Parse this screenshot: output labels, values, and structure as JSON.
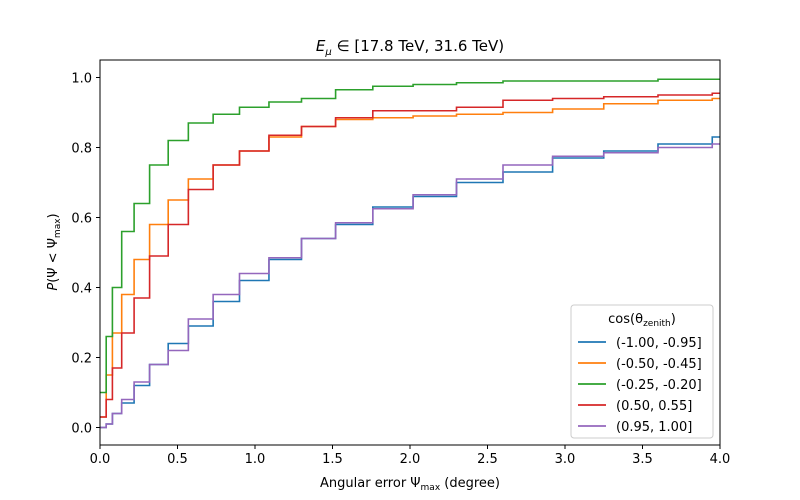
{
  "chart_data": {
    "type": "line",
    "step": true,
    "title": "E_μ ∈ [17.8 TeV, 31.6 TeV)",
    "title_parts": {
      "sym": "E",
      "sub": "μ",
      "rest": " ∈ [17.8 TeV, 31.6 TeV)"
    },
    "xlabel": "Angular error Ψ_max (degree)",
    "xlabel_parts": {
      "pre": "Angular error Ψ",
      "sub": "max",
      "post": " (degree)"
    },
    "ylabel": "P(Ψ < Ψ_max)",
    "ylabel_parts": {
      "pre": "P(Ψ < Ψ",
      "sub": "max",
      "post": ")"
    },
    "xlim": [
      0,
      4
    ],
    "ylim": [
      -0.05,
      1.05
    ],
    "xticks": [
      "0.0",
      "0.5",
      "1.0",
      "1.5",
      "2.0",
      "2.5",
      "3.0",
      "3.5",
      "4.0"
    ],
    "yticks": [
      "0.0",
      "0.2",
      "0.4",
      "0.6",
      "0.8",
      "1.0"
    ],
    "legend": {
      "title": "cos(θ_zenith)",
      "title_parts": {
        "pre": "cos(θ",
        "sub": "zenith",
        "post": ")"
      },
      "placement": "bottom-right"
    },
    "x": [
      0,
      0.04,
      0.08,
      0.14,
      0.22,
      0.32,
      0.44,
      0.57,
      0.73,
      0.9,
      1.09,
      1.3,
      1.52,
      1.76,
      2.02,
      2.3,
      2.6,
      2.92,
      3.25,
      3.6,
      3.95
    ],
    "series": [
      {
        "name": "(-1.00, -0.95]",
        "color": "#1f77b4",
        "values": [
          0.0,
          0.01,
          0.04,
          0.07,
          0.12,
          0.18,
          0.24,
          0.29,
          0.36,
          0.42,
          0.48,
          0.54,
          0.58,
          0.63,
          0.66,
          0.7,
          0.73,
          0.77,
          0.79,
          0.81,
          0.83
        ]
      },
      {
        "name": "(-0.50, -0.45]",
        "color": "#ff7f0e",
        "values": [
          0.03,
          0.15,
          0.27,
          0.38,
          0.48,
          0.58,
          0.65,
          0.71,
          0.75,
          0.79,
          0.83,
          0.86,
          0.88,
          0.885,
          0.89,
          0.895,
          0.9,
          0.91,
          0.925,
          0.935,
          0.94
        ]
      },
      {
        "name": "(-0.25, -0.20]",
        "color": "#2ca02c",
        "values": [
          0.1,
          0.26,
          0.4,
          0.56,
          0.64,
          0.75,
          0.82,
          0.87,
          0.895,
          0.915,
          0.93,
          0.94,
          0.965,
          0.975,
          0.98,
          0.985,
          0.99,
          0.99,
          0.99,
          0.995,
          0.995
        ]
      },
      {
        "name": "(0.50, 0.55]",
        "color": "#d62728",
        "values": [
          0.03,
          0.08,
          0.17,
          0.27,
          0.37,
          0.49,
          0.58,
          0.68,
          0.75,
          0.79,
          0.835,
          0.86,
          0.885,
          0.905,
          0.905,
          0.915,
          0.935,
          0.94,
          0.945,
          0.95,
          0.955
        ]
      },
      {
        "name": "(0.95, 1.00]",
        "color": "#9467bd",
        "values": [
          0.0,
          0.01,
          0.04,
          0.08,
          0.13,
          0.18,
          0.22,
          0.31,
          0.38,
          0.44,
          0.485,
          0.54,
          0.585,
          0.625,
          0.665,
          0.71,
          0.75,
          0.775,
          0.785,
          0.8,
          0.81
        ]
      }
    ]
  }
}
